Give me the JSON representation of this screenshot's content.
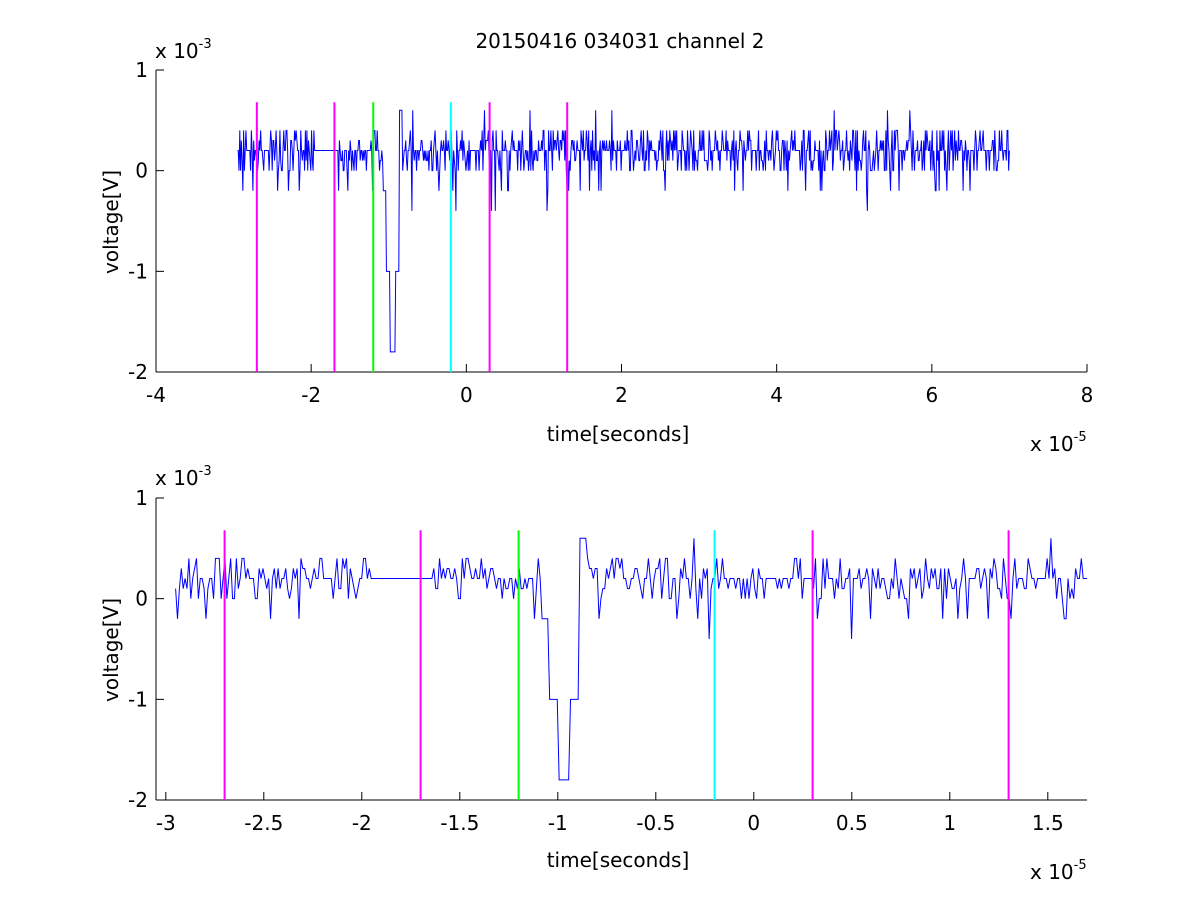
{
  "figure": {
    "title": "20150416 034031 channel 2",
    "colors": {
      "signal": "#0000ff",
      "marker_magenta": "#ff00ff",
      "marker_green": "#00ff00",
      "marker_cyan": "#00ffff",
      "axes": "#000000",
      "background": "#ffffff"
    }
  },
  "chart_data": [
    {
      "type": "line",
      "xlabel": "time[seconds]",
      "ylabel": "voltage[V]",
      "x_multiplier_text": "x 10",
      "x_multiplier_exp": "-5",
      "y_multiplier_text": "x 10",
      "y_multiplier_exp": "-3",
      "xlim": [
        -4,
        8
      ],
      "ylim": [
        -2,
        1
      ],
      "x_ticks": [
        -4,
        -2,
        0,
        2,
        4,
        6,
        8
      ],
      "x_tick_labels": [
        "-4",
        "-2",
        "0",
        "2",
        "4",
        "6",
        "8"
      ],
      "y_ticks": [
        -2,
        -1,
        0,
        1
      ],
      "y_tick_labels": [
        "-2",
        "-1",
        "0",
        "1"
      ],
      "grid": false,
      "legend": "none",
      "signal_x_range": [
        -2.95,
        7.0
      ],
      "signal_baseline": 0.2,
      "signal_spike": {
        "x": -0.95,
        "min": -1.8
      },
      "markers": [
        {
          "x": -2.7,
          "color": "magenta",
          "ymin": -2,
          "ymax": 0.68
        },
        {
          "x": -1.7,
          "color": "magenta",
          "ymin": -2,
          "ymax": 0.68
        },
        {
          "x": -1.2,
          "color": "green",
          "ymin": -2,
          "ymax": 0.68
        },
        {
          "x": -0.2,
          "color": "cyan",
          "ymin": -2,
          "ymax": 0.68
        },
        {
          "x": 0.3,
          "color": "magenta",
          "ymin": -2,
          "ymax": 0.68
        },
        {
          "x": 1.3,
          "color": "magenta",
          "ymin": -2,
          "ymax": 0.68
        }
      ]
    },
    {
      "type": "line",
      "xlabel": "time[seconds]",
      "ylabel": "voltage[V]",
      "x_multiplier_text": "x 10",
      "x_multiplier_exp": "-5",
      "y_multiplier_text": "x 10",
      "y_multiplier_exp": "-3",
      "xlim": [
        -3.05,
        1.7
      ],
      "ylim": [
        -2,
        1
      ],
      "x_ticks": [
        -3,
        -2.5,
        -2,
        -1.5,
        -1,
        -0.5,
        0,
        0.5,
        1,
        1.5
      ],
      "x_tick_labels": [
        "-3",
        "-2.5",
        "-2",
        "-1.5",
        "-1",
        "-0.5",
        "0",
        "0.5",
        "1",
        "1.5"
      ],
      "y_ticks": [
        -2,
        -1,
        0,
        1
      ],
      "y_tick_labels": [
        "-2",
        "-1",
        "0",
        "1"
      ],
      "grid": false,
      "legend": "none",
      "signal_x_range": [
        -2.95,
        1.7
      ],
      "signal_baseline": 0.2,
      "signal_spike": {
        "x": -0.97,
        "min": -1.8
      },
      "markers": [
        {
          "x": -2.7,
          "color": "magenta",
          "ymin": -2,
          "ymax": 0.68
        },
        {
          "x": -1.7,
          "color": "magenta",
          "ymin": -2,
          "ymax": 0.68
        },
        {
          "x": -1.2,
          "color": "green",
          "ymin": -2,
          "ymax": 0.68
        },
        {
          "x": -0.2,
          "color": "cyan",
          "ymin": -2,
          "ymax": 0.68
        },
        {
          "x": 0.3,
          "color": "magenta",
          "ymin": -2,
          "ymax": 0.68
        },
        {
          "x": 1.3,
          "color": "magenta",
          "ymin": -2,
          "ymax": 0.68
        }
      ]
    }
  ]
}
